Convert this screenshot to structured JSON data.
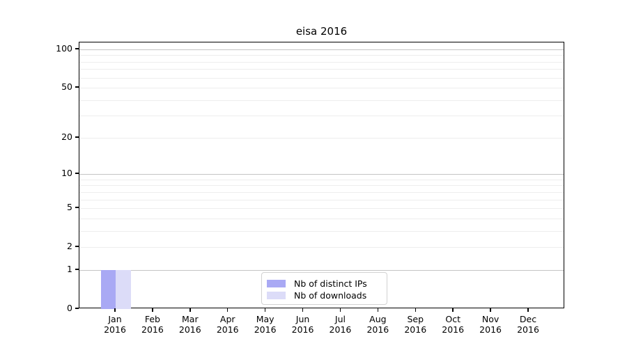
{
  "chart_data": {
    "type": "bar",
    "title": "eisa 2016",
    "categories": [
      "Jan",
      "Feb",
      "Mar",
      "Apr",
      "May",
      "Jun",
      "Jul",
      "Aug",
      "Sep",
      "Oct",
      "Nov",
      "Dec"
    ],
    "year_label": "2016",
    "series": [
      {
        "name": "Nb of distinct IPs",
        "color": "#a9a9f4",
        "values": [
          1,
          0,
          0,
          0,
          0,
          0,
          0,
          0,
          0,
          0,
          0,
          0
        ]
      },
      {
        "name": "Nb of downloads",
        "color": "#dcdcf8",
        "values": [
          1,
          0,
          0,
          0,
          0,
          0,
          0,
          0,
          0,
          0,
          0,
          0
        ]
      }
    ],
    "xlabel": "",
    "ylabel": "",
    "y_axis": {
      "scale": "log1p",
      "ticks": [
        0,
        1,
        2,
        5,
        10,
        20,
        50,
        100
      ],
      "major_gridlines": [
        1,
        10,
        100
      ],
      "minor_gridlines": [
        2,
        3,
        4,
        5,
        6,
        7,
        8,
        9,
        20,
        30,
        40,
        50,
        60,
        70,
        80,
        90
      ],
      "ylim": [
        0,
        114
      ]
    },
    "legend": {
      "position": "lower center"
    },
    "grid": "on",
    "colors": {
      "major_grid": "#c4c4c4",
      "minor_grid": "#ededed",
      "spine": "#000000",
      "background": "#ffffff"
    }
  }
}
